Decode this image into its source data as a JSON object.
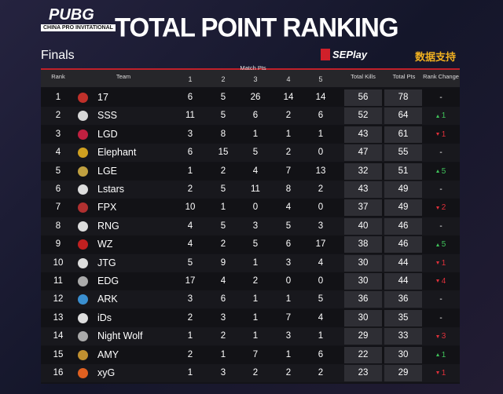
{
  "header": {
    "logo": "PUBG",
    "logo_sub": "CHINA PRO INVITATIONAL",
    "title": "TOTAL POINT RANKING",
    "subtitle": "Finals",
    "sponsor": "SEPlay",
    "sponsor_note": "数据支持"
  },
  "table": {
    "columns": {
      "rank": "Rank",
      "team": "Team",
      "match_pts": "Match Pts",
      "matches": [
        1,
        2,
        3,
        4,
        5
      ],
      "total_kills": "Total Kills",
      "total_pts": "Total Pts",
      "rank_change": "Rank Change"
    },
    "rows": [
      {
        "rank": 1,
        "team": "17",
        "match_pts": [
          6,
          5,
          26,
          14,
          14
        ],
        "total_kills": 56,
        "total_pts": 78,
        "rank_change": {
          "text": "-",
          "dir": "none"
        }
      },
      {
        "rank": 2,
        "team": "SSS",
        "match_pts": [
          11,
          5,
          6,
          2,
          6
        ],
        "total_kills": 52,
        "total_pts": 64,
        "rank_change": {
          "text": "1",
          "dir": "up"
        }
      },
      {
        "rank": 3,
        "team": "LGD",
        "match_pts": [
          3,
          8,
          1,
          1,
          1
        ],
        "total_kills": 43,
        "total_pts": 61,
        "rank_change": {
          "text": "1",
          "dir": "down"
        }
      },
      {
        "rank": 4,
        "team": "Elephant",
        "match_pts": [
          6,
          15,
          5,
          2,
          0
        ],
        "total_kills": 47,
        "total_pts": 55,
        "rank_change": {
          "text": "-",
          "dir": "none"
        }
      },
      {
        "rank": 5,
        "team": "LGE",
        "match_pts": [
          1,
          2,
          4,
          7,
          13
        ],
        "total_kills": 32,
        "total_pts": 51,
        "rank_change": {
          "text": "5",
          "dir": "up"
        }
      },
      {
        "rank": 6,
        "team": "Lstars",
        "match_pts": [
          2,
          5,
          11,
          8,
          2
        ],
        "total_kills": 43,
        "total_pts": 49,
        "rank_change": {
          "text": "-",
          "dir": "none"
        }
      },
      {
        "rank": 7,
        "team": "FPX",
        "match_pts": [
          10,
          1,
          0,
          4,
          0
        ],
        "total_kills": 37,
        "total_pts": 49,
        "rank_change": {
          "text": "2",
          "dir": "down"
        }
      },
      {
        "rank": 8,
        "team": "RNG",
        "match_pts": [
          4,
          5,
          3,
          5,
          3
        ],
        "total_kills": 40,
        "total_pts": 46,
        "rank_change": {
          "text": "-",
          "dir": "none"
        }
      },
      {
        "rank": 9,
        "team": "WZ",
        "match_pts": [
          4,
          2,
          5,
          6,
          17
        ],
        "total_kills": 38,
        "total_pts": 46,
        "rank_change": {
          "text": "5",
          "dir": "up"
        }
      },
      {
        "rank": 10,
        "team": "JTG",
        "match_pts": [
          5,
          9,
          1,
          3,
          4
        ],
        "total_kills": 30,
        "total_pts": 44,
        "rank_change": {
          "text": "1",
          "dir": "down"
        }
      },
      {
        "rank": 11,
        "team": "EDG",
        "match_pts": [
          17,
          4,
          2,
          0,
          0
        ],
        "total_kills": 30,
        "total_pts": 44,
        "rank_change": {
          "text": "4",
          "dir": "down"
        }
      },
      {
        "rank": 12,
        "team": "ARK",
        "match_pts": [
          3,
          6,
          1,
          1,
          5
        ],
        "total_kills": 36,
        "total_pts": 36,
        "rank_change": {
          "text": "-",
          "dir": "none"
        }
      },
      {
        "rank": 13,
        "team": "iDs",
        "match_pts": [
          2,
          3,
          1,
          7,
          4
        ],
        "total_kills": 30,
        "total_pts": 35,
        "rank_change": {
          "text": "-",
          "dir": "none"
        }
      },
      {
        "rank": 14,
        "team": "Night Wolf",
        "match_pts": [
          1,
          2,
          1,
          3,
          1
        ],
        "total_kills": 29,
        "total_pts": 33,
        "rank_change": {
          "text": "3",
          "dir": "down"
        }
      },
      {
        "rank": 15,
        "team": "AMY",
        "match_pts": [
          2,
          1,
          7,
          1,
          6
        ],
        "total_kills": 22,
        "total_pts": 30,
        "rank_change": {
          "text": "1",
          "dir": "up"
        }
      },
      {
        "rank": 16,
        "team": "xyG",
        "match_pts": [
          1,
          3,
          2,
          2,
          2
        ],
        "total_kills": 23,
        "total_pts": 29,
        "rank_change": {
          "text": "1",
          "dir": "down"
        }
      }
    ]
  }
}
